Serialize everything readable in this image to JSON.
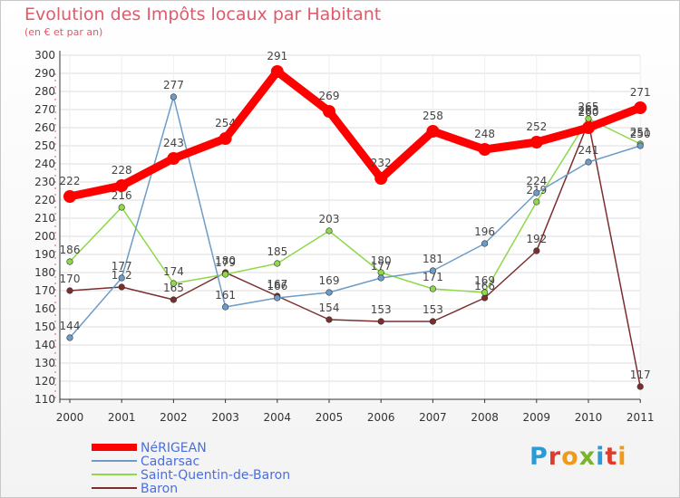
{
  "title": "Evolution des Impôts locaux par Habitant",
  "subtitle": "(en € et par an)",
  "logo": {
    "text": "Proxiti",
    "colors": [
      "#2a9bd6",
      "#e03c2c",
      "#f09a1a",
      "#7ab32e",
      "#2a9bd6",
      "#e03c2c",
      "#f09a1a"
    ]
  },
  "chart_data": {
    "type": "line",
    "x": [
      "2000",
      "2001",
      "2002",
      "2003",
      "2004",
      "2005",
      "2006",
      "2007",
      "2008",
      "2009",
      "2010",
      "2011"
    ],
    "ylim": [
      110,
      300
    ],
    "yticks": [
      110,
      120,
      130,
      140,
      150,
      160,
      170,
      180,
      190,
      200,
      210,
      220,
      230,
      240,
      250,
      260,
      270,
      280,
      290,
      300
    ],
    "grid": true,
    "legend_position": "bottom-left",
    "series": [
      {
        "name": "NéRIGEAN",
        "color": "#ff0000",
        "values": [
          222,
          228,
          243,
          254,
          291,
          269,
          232,
          258,
          248,
          252,
          260,
          271
        ]
      },
      {
        "name": "Cadarsac",
        "color": "#6e9cc8",
        "values": [
          144,
          177,
          277,
          161,
          166,
          169,
          177,
          181,
          196,
          224,
          241,
          250
        ]
      },
      {
        "name": "Saint-Quentin-de-Baron",
        "color": "#8ed84a",
        "values": [
          186,
          216,
          174,
          179,
          185,
          203,
          180,
          171,
          169,
          219,
          265,
          251
        ]
      },
      {
        "name": "Baron",
        "color": "#7a2e2e",
        "values": [
          170,
          172,
          165,
          180,
          167,
          154,
          153,
          153,
          166,
          192,
          263,
          117
        ]
      }
    ]
  }
}
